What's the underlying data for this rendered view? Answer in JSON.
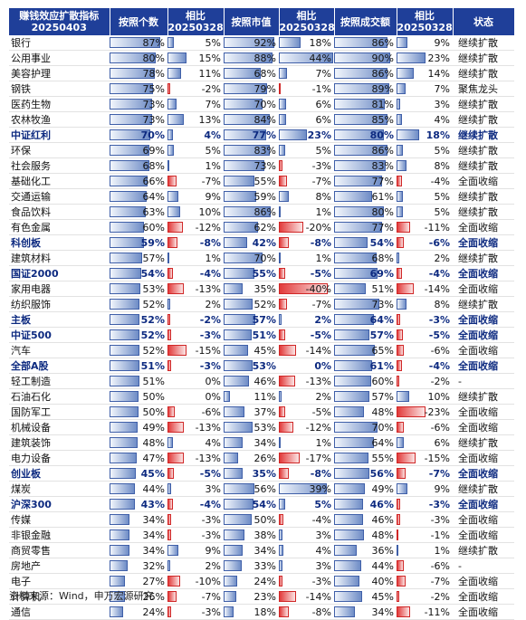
{
  "source": "资料来源：Wind，申万宏源研究",
  "colors": {
    "header_bg": "#1f3f99",
    "positive": "#6e8cc6",
    "negative": "#e23a3a",
    "bold_text": "#0d2a80"
  },
  "chart_data": {
    "type": "table",
    "headers": [
      "赚钱效应扩散指标",
      "按照个数",
      "相比",
      "按照市值",
      "相比",
      "按照成交额",
      "相比",
      "状态"
    ],
    "dates": {
      "current": "20250403",
      "previous": "20250328"
    },
    "columns": [
      "name",
      "count_pct",
      "count_chg",
      "mktcap_pct",
      "mktcap_chg",
      "turnover_pct",
      "turnover_chg",
      "status"
    ],
    "rows": [
      {
        "name": "银行",
        "count": "87%",
        "count_chg": "5%",
        "mktcap": "92%",
        "mktcap_chg": "18%",
        "turnover": "86%",
        "turnover_chg": "9%",
        "status": "继续扩散",
        "bold": false
      },
      {
        "name": "公用事业",
        "count": "80%",
        "count_chg": "15%",
        "mktcap": "88%",
        "mktcap_chg": "44%",
        "turnover": "90%",
        "turnover_chg": "23%",
        "status": "继续扩散",
        "bold": false
      },
      {
        "name": "美容护理",
        "count": "78%",
        "count_chg": "11%",
        "mktcap": "68%",
        "mktcap_chg": "7%",
        "turnover": "86%",
        "turnover_chg": "14%",
        "status": "继续扩散",
        "bold": false
      },
      {
        "name": "钢铁",
        "count": "75%",
        "count_chg": "-2%",
        "mktcap": "79%",
        "mktcap_chg": "-1%",
        "turnover": "89%",
        "turnover_chg": "7%",
        "status": "聚焦龙头",
        "bold": false
      },
      {
        "name": "医药生物",
        "count": "73%",
        "count_chg": "7%",
        "mktcap": "70%",
        "mktcap_chg": "6%",
        "turnover": "81%",
        "turnover_chg": "3%",
        "status": "继续扩散",
        "bold": false
      },
      {
        "name": "农林牧渔",
        "count": "73%",
        "count_chg": "13%",
        "mktcap": "84%",
        "mktcap_chg": "6%",
        "turnover": "85%",
        "turnover_chg": "4%",
        "status": "继续扩散",
        "bold": false
      },
      {
        "name": "中证红利",
        "count": "70%",
        "count_chg": "4%",
        "mktcap": "77%",
        "mktcap_chg": "23%",
        "turnover": "80%",
        "turnover_chg": "18%",
        "status": "继续扩散",
        "bold": true
      },
      {
        "name": "环保",
        "count": "69%",
        "count_chg": "5%",
        "mktcap": "83%",
        "mktcap_chg": "5%",
        "turnover": "86%",
        "turnover_chg": "5%",
        "status": "继续扩散",
        "bold": false
      },
      {
        "name": "社会服务",
        "count": "68%",
        "count_chg": "1%",
        "mktcap": "73%",
        "mktcap_chg": "-3%",
        "turnover": "83%",
        "turnover_chg": "8%",
        "status": "继续扩散",
        "bold": false
      },
      {
        "name": "基础化工",
        "count": "66%",
        "count_chg": "-7%",
        "mktcap": "55%",
        "mktcap_chg": "-7%",
        "turnover": "77%",
        "turnover_chg": "-4%",
        "status": "全面收缩",
        "bold": false
      },
      {
        "name": "交通运输",
        "count": "64%",
        "count_chg": "9%",
        "mktcap": "59%",
        "mktcap_chg": "8%",
        "turnover": "61%",
        "turnover_chg": "5%",
        "status": "继续扩散",
        "bold": false
      },
      {
        "name": "食品饮料",
        "count": "63%",
        "count_chg": "10%",
        "mktcap": "86%",
        "mktcap_chg": "1%",
        "turnover": "80%",
        "turnover_chg": "5%",
        "status": "继续扩散",
        "bold": false
      },
      {
        "name": "有色金属",
        "count": "60%",
        "count_chg": "-12%",
        "mktcap": "62%",
        "mktcap_chg": "-20%",
        "turnover": "77%",
        "turnover_chg": "-11%",
        "status": "全面收缩",
        "bold": false
      },
      {
        "name": "科创板",
        "count": "59%",
        "count_chg": "-8%",
        "mktcap": "42%",
        "mktcap_chg": "-8%",
        "turnover": "54%",
        "turnover_chg": "-6%",
        "status": "全面收缩",
        "bold": true
      },
      {
        "name": "建筑材料",
        "count": "57%",
        "count_chg": "1%",
        "mktcap": "70%",
        "mktcap_chg": "1%",
        "turnover": "68%",
        "turnover_chg": "2%",
        "status": "继续扩散",
        "bold": false
      },
      {
        "name": "国证2000",
        "count": "54%",
        "count_chg": "-4%",
        "mktcap": "55%",
        "mktcap_chg": "-5%",
        "turnover": "69%",
        "turnover_chg": "-4%",
        "status": "全面收缩",
        "bold": true
      },
      {
        "name": "家用电器",
        "count": "53%",
        "count_chg": "-13%",
        "mktcap": "35%",
        "mktcap_chg": "-40%",
        "turnover": "51%",
        "turnover_chg": "-14%",
        "status": "全面收缩",
        "bold": false
      },
      {
        "name": "纺织服饰",
        "count": "52%",
        "count_chg": "2%",
        "mktcap": "52%",
        "mktcap_chg": "-7%",
        "turnover": "73%",
        "turnover_chg": "8%",
        "status": "继续扩散",
        "bold": false
      },
      {
        "name": "主板",
        "count": "52%",
        "count_chg": "-2%",
        "mktcap": "57%",
        "mktcap_chg": "2%",
        "turnover": "64%",
        "turnover_chg": "-3%",
        "status": "全面收缩",
        "bold": true
      },
      {
        "name": "中证500",
        "count": "52%",
        "count_chg": "-3%",
        "mktcap": "51%",
        "mktcap_chg": "-5%",
        "turnover": "57%",
        "turnover_chg": "-5%",
        "status": "全面收缩",
        "bold": true
      },
      {
        "name": "汽车",
        "count": "52%",
        "count_chg": "-15%",
        "mktcap": "45%",
        "mktcap_chg": "-14%",
        "turnover": "65%",
        "turnover_chg": "-6%",
        "status": "全面收缩",
        "bold": false
      },
      {
        "name": "全部A股",
        "count": "51%",
        "count_chg": "-3%",
        "mktcap": "53%",
        "mktcap_chg": "0%",
        "turnover": "61%",
        "turnover_chg": "-4%",
        "status": "全面收缩",
        "bold": true
      },
      {
        "name": "轻工制造",
        "count": "51%",
        "count_chg": "0%",
        "mktcap": "46%",
        "mktcap_chg": "-13%",
        "turnover": "60%",
        "turnover_chg": "-2%",
        "status": "-",
        "bold": false
      },
      {
        "name": "石油石化",
        "count": "50%",
        "count_chg": "0%",
        "mktcap": "11%",
        "mktcap_chg": "2%",
        "turnover": "57%",
        "turnover_chg": "10%",
        "status": "继续扩散",
        "bold": false
      },
      {
        "name": "国防军工",
        "count": "50%",
        "count_chg": "-6%",
        "mktcap": "37%",
        "mktcap_chg": "-5%",
        "turnover": "48%",
        "turnover_chg": "-23%",
        "status": "全面收缩",
        "bold": false
      },
      {
        "name": "机械设备",
        "count": "49%",
        "count_chg": "-13%",
        "mktcap": "53%",
        "mktcap_chg": "-12%",
        "turnover": "70%",
        "turnover_chg": "-6%",
        "status": "全面收缩",
        "bold": false
      },
      {
        "name": "建筑装饰",
        "count": "48%",
        "count_chg": "4%",
        "mktcap": "34%",
        "mktcap_chg": "1%",
        "turnover": "64%",
        "turnover_chg": "6%",
        "status": "继续扩散",
        "bold": false
      },
      {
        "name": "电力设备",
        "count": "47%",
        "count_chg": "-13%",
        "mktcap": "26%",
        "mktcap_chg": "-17%",
        "turnover": "55%",
        "turnover_chg": "-15%",
        "status": "全面收缩",
        "bold": false
      },
      {
        "name": "创业板",
        "count": "45%",
        "count_chg": "-5%",
        "mktcap": "35%",
        "mktcap_chg": "-8%",
        "turnover": "56%",
        "turnover_chg": "-7%",
        "status": "全面收缩",
        "bold": true
      },
      {
        "name": "煤炭",
        "count": "44%",
        "count_chg": "3%",
        "mktcap": "56%",
        "mktcap_chg": "39%",
        "turnover": "49%",
        "turnover_chg": "9%",
        "status": "继续扩散",
        "bold": false
      },
      {
        "name": "沪深300",
        "count": "43%",
        "count_chg": "-4%",
        "mktcap": "54%",
        "mktcap_chg": "5%",
        "turnover": "46%",
        "turnover_chg": "-3%",
        "status": "全面收缩",
        "bold": true
      },
      {
        "name": "传媒",
        "count": "34%",
        "count_chg": "-3%",
        "mktcap": "50%",
        "mktcap_chg": "-4%",
        "turnover": "46%",
        "turnover_chg": "-3%",
        "status": "全面收缩",
        "bold": false
      },
      {
        "name": "非银金融",
        "count": "34%",
        "count_chg": "-3%",
        "mktcap": "38%",
        "mktcap_chg": "3%",
        "turnover": "48%",
        "turnover_chg": "-1%",
        "status": "全面收缩",
        "bold": false
      },
      {
        "name": "商贸零售",
        "count": "34%",
        "count_chg": "9%",
        "mktcap": "34%",
        "mktcap_chg": "4%",
        "turnover": "36%",
        "turnover_chg": "1%",
        "status": "继续扩散",
        "bold": false
      },
      {
        "name": "房地产",
        "count": "32%",
        "count_chg": "2%",
        "mktcap": "33%",
        "mktcap_chg": "3%",
        "turnover": "44%",
        "turnover_chg": "-6%",
        "status": "-",
        "bold": false
      },
      {
        "name": "电子",
        "count": "27%",
        "count_chg": "-10%",
        "mktcap": "24%",
        "mktcap_chg": "-3%",
        "turnover": "40%",
        "turnover_chg": "-7%",
        "status": "全面收缩",
        "bold": false
      },
      {
        "name": "计算机",
        "count": "26%",
        "count_chg": "-7%",
        "mktcap": "23%",
        "mktcap_chg": "-14%",
        "turnover": "45%",
        "turnover_chg": "-2%",
        "status": "全面收缩",
        "bold": false
      },
      {
        "name": "通信",
        "count": "24%",
        "count_chg": "-3%",
        "mktcap": "18%",
        "mktcap_chg": "-8%",
        "turnover": "34%",
        "turnover_chg": "-11%",
        "status": "全面收缩",
        "bold": false
      }
    ]
  }
}
